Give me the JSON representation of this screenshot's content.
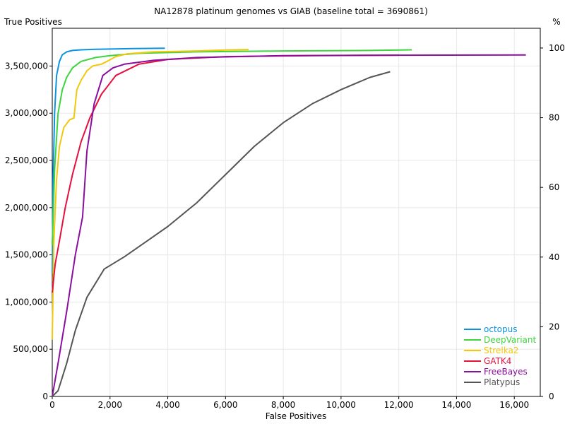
{
  "chart_data": {
    "type": "line",
    "title": "NA12878 platinum genomes vs GIAB (baseline total = 3690861)",
    "xlabel": "False Positives",
    "ylabel": "True Positives",
    "y2label": "%",
    "xlim": [
      0,
      16900
    ],
    "ylim": [
      0,
      3690861
    ],
    "y2lim": [
      0,
      100
    ],
    "x_ticks": [
      0,
      2000,
      4000,
      6000,
      8000,
      10000,
      12000,
      14000,
      16000
    ],
    "x_tick_labels": [
      "0",
      "2,000",
      "4,000",
      "6,000",
      "8,000",
      "10,000",
      "12,000",
      "14,000",
      "16,000"
    ],
    "y_ticks": [
      0,
      500000,
      1000000,
      1500000,
      2000000,
      2500000,
      3000000,
      3500000
    ],
    "y_tick_labels": [
      "0",
      "500,000",
      "1,000,000",
      "1,500,000",
      "2,000,000",
      "2,500,000",
      "3,000,000",
      "3,500,000"
    ],
    "y2_ticks": [
      0,
      20,
      40,
      60,
      80,
      100
    ],
    "y2_tick_labels": [
      "0",
      "20",
      "40",
      "60",
      "80",
      "100"
    ],
    "grid": true,
    "legend_position": "bottom-right",
    "series": [
      {
        "name": "octopus",
        "color": "#0b93e0",
        "x": [
          0,
          30,
          80,
          150,
          250,
          350,
          500,
          700,
          1000,
          1500,
          2000,
          2800,
          3900
        ],
        "y": [
          1300000,
          2300000,
          3000000,
          3400000,
          3550000,
          3620000,
          3650000,
          3665000,
          3672000,
          3678000,
          3680000,
          3685000,
          3688000
        ]
      },
      {
        "name": "DeepVariant",
        "color": "#3ed43e",
        "x": [
          0,
          80,
          200,
          350,
          500,
          700,
          1000,
          1500,
          2000,
          3000,
          5000,
          8000,
          11000,
          12450
        ],
        "y": [
          1600000,
          2400000,
          3000000,
          3250000,
          3380000,
          3480000,
          3550000,
          3590000,
          3610000,
          3635000,
          3650000,
          3660000,
          3665000,
          3672000
        ]
      },
      {
        "name": "Strelka2",
        "color": "#f2c70c",
        "x": [
          0,
          50,
          150,
          250,
          400,
          600,
          750,
          850,
          1000,
          1200,
          1400,
          1700,
          1900,
          2200,
          2600,
          3500,
          5000,
          6000,
          6800
        ],
        "y": [
          600000,
          1600000,
          2300000,
          2650000,
          2850000,
          2930000,
          2950000,
          3250000,
          3350000,
          3450000,
          3500000,
          3520000,
          3550000,
          3600000,
          3630000,
          3650000,
          3660000,
          3670000,
          3675000
        ]
      },
      {
        "name": "GATK4",
        "color": "#e6103e",
        "x": [
          0,
          100,
          250,
          450,
          700,
          1000,
          1300,
          1700,
          2200,
          3000,
          4000,
          6000,
          9000,
          12000
        ],
        "y": [
          1100000,
          1400000,
          1650000,
          2000000,
          2350000,
          2700000,
          2950000,
          3200000,
          3400000,
          3520000,
          3570000,
          3600000,
          3610000,
          3615000
        ]
      },
      {
        "name": "FreeBayes",
        "color": "#8b0f9e",
        "x": [
          0,
          200,
          500,
          800,
          1050,
          1200,
          1450,
          1750,
          2100,
          2500,
          3500,
          5000,
          8000,
          12000,
          16400
        ],
        "y": [
          0,
          350000,
          900000,
          1500000,
          1900000,
          2600000,
          3100000,
          3400000,
          3480000,
          3520000,
          3560000,
          3590000,
          3610000,
          3615000,
          3618000
        ]
      },
      {
        "name": "Platypus",
        "color": "#555555",
        "x": [
          0,
          200,
          500,
          800,
          1200,
          1800,
          2500,
          3300,
          4000,
          5000,
          6000,
          7000,
          8000,
          9000,
          10000,
          11000,
          11700
        ],
        "y": [
          0,
          60000,
          350000,
          700000,
          1050000,
          1350000,
          1480000,
          1650000,
          1800000,
          2050000,
          2350000,
          2650000,
          2900000,
          3100000,
          3250000,
          3380000,
          3440000
        ]
      }
    ]
  }
}
